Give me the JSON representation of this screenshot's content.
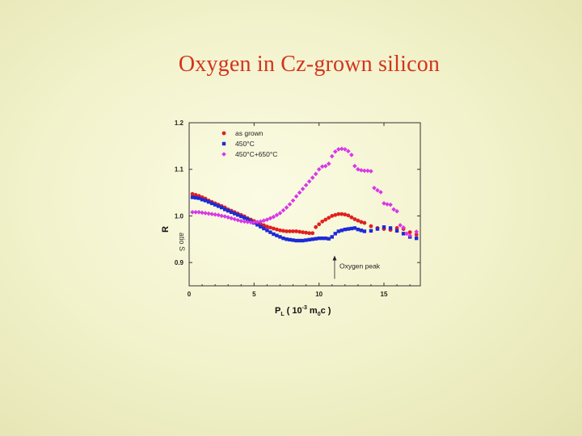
{
  "slide": {
    "title": "Oxygen in Cz-grown silicon"
  },
  "chart_data": {
    "type": "scatter",
    "title": "",
    "xlabel": {
      "main": "P",
      "sub": "L",
      "open": " ( 10",
      "exp": "-3",
      " mid": "",
      "unit_main": " m",
      "unit_sub": "0",
      "close": "c )"
    },
    "ylabel": "R",
    "ylabel_extra": "atio S",
    "xlim": [
      0,
      17.8
    ],
    "ylim": [
      0.85,
      1.2
    ],
    "x_ticks": [
      0,
      5,
      10,
      15
    ],
    "x_tick_labels": [
      "0",
      "5",
      "10",
      "15"
    ],
    "y_ticks": [
      0.9,
      1.0,
      1.1,
      1.2
    ],
    "y_tick_labels": [
      "0.9",
      "1.0",
      "1.1",
      "1.2"
    ],
    "legend_position": "top-left",
    "series": [
      {
        "name": "as grown",
        "color": "#e02020",
        "marker": "circle",
        "points": [
          [
            0.25,
            1.047
          ],
          [
            0.5,
            1.045
          ],
          [
            0.75,
            1.043
          ],
          [
            1.0,
            1.04
          ],
          [
            1.25,
            1.037
          ],
          [
            1.5,
            1.033
          ],
          [
            1.75,
            1.03
          ],
          [
            2.0,
            1.027
          ],
          [
            2.25,
            1.024
          ],
          [
            2.5,
            1.021
          ],
          [
            2.75,
            1.018
          ],
          [
            3.0,
            1.014
          ],
          [
            3.25,
            1.011
          ],
          [
            3.5,
            1.008
          ],
          [
            3.75,
            1.005
          ],
          [
            4.0,
            1.002
          ],
          [
            4.25,
            0.999
          ],
          [
            4.5,
            0.995
          ],
          [
            4.75,
            0.992
          ],
          [
            5.0,
            0.989
          ],
          [
            5.25,
            0.986
          ],
          [
            5.5,
            0.983
          ],
          [
            5.75,
            0.98
          ],
          [
            6.0,
            0.977
          ],
          [
            6.25,
            0.975
          ],
          [
            6.5,
            0.973
          ],
          [
            6.75,
            0.971
          ],
          [
            7.0,
            0.969
          ],
          [
            7.25,
            0.968
          ],
          [
            7.5,
            0.967
          ],
          [
            7.75,
            0.967
          ],
          [
            8.0,
            0.967
          ],
          [
            8.25,
            0.967
          ],
          [
            8.5,
            0.966
          ],
          [
            8.75,
            0.965
          ],
          [
            9.0,
            0.964
          ],
          [
            9.25,
            0.963
          ],
          [
            9.5,
            0.963
          ],
          [
            9.75,
            0.976
          ],
          [
            10.0,
            0.982
          ],
          [
            10.25,
            0.988
          ],
          [
            10.5,
            0.992
          ],
          [
            10.75,
            0.996
          ],
          [
            11.0,
            1.0
          ],
          [
            11.25,
            1.002
          ],
          [
            11.5,
            1.004
          ],
          [
            11.75,
            1.004
          ],
          [
            12.0,
            1.003
          ],
          [
            12.25,
            1.001
          ],
          [
            12.5,
            0.997
          ],
          [
            12.75,
            0.993
          ],
          [
            13.0,
            0.99
          ],
          [
            13.25,
            0.987
          ],
          [
            13.5,
            0.985
          ],
          [
            14.0,
            0.978
          ],
          [
            14.5,
            0.974
          ],
          [
            15.0,
            0.972
          ],
          [
            15.5,
            0.97
          ],
          [
            16.0,
            0.974
          ],
          [
            16.5,
            0.972
          ],
          [
            17.0,
            0.965
          ],
          [
            17.5,
            0.96
          ]
        ]
      },
      {
        "name": "450°C",
        "color": "#1c2ad8",
        "marker": "square",
        "points": [
          [
            0.25,
            1.04
          ],
          [
            0.5,
            1.039
          ],
          [
            0.75,
            1.038
          ],
          [
            1.0,
            1.035
          ],
          [
            1.25,
            1.033
          ],
          [
            1.5,
            1.03
          ],
          [
            1.75,
            1.027
          ],
          [
            2.0,
            1.024
          ],
          [
            2.25,
            1.021
          ],
          [
            2.5,
            1.018
          ],
          [
            2.75,
            1.014
          ],
          [
            3.0,
            1.011
          ],
          [
            3.25,
            1.008
          ],
          [
            3.5,
            1.005
          ],
          [
            3.75,
            1.002
          ],
          [
            4.0,
            0.999
          ],
          [
            4.25,
            0.996
          ],
          [
            4.5,
            0.993
          ],
          [
            4.75,
            0.989
          ],
          [
            5.0,
            0.985
          ],
          [
            5.25,
            0.981
          ],
          [
            5.5,
            0.977
          ],
          [
            5.75,
            0.973
          ],
          [
            6.0,
            0.969
          ],
          [
            6.25,
            0.965
          ],
          [
            6.5,
            0.961
          ],
          [
            6.75,
            0.958
          ],
          [
            7.0,
            0.955
          ],
          [
            7.25,
            0.952
          ],
          [
            7.5,
            0.95
          ],
          [
            7.75,
            0.949
          ],
          [
            8.0,
            0.948
          ],
          [
            8.25,
            0.947
          ],
          [
            8.5,
            0.947
          ],
          [
            8.75,
            0.947
          ],
          [
            9.0,
            0.948
          ],
          [
            9.25,
            0.949
          ],
          [
            9.5,
            0.95
          ],
          [
            9.75,
            0.951
          ],
          [
            10.0,
            0.952
          ],
          [
            10.25,
            0.952
          ],
          [
            10.5,
            0.952
          ],
          [
            10.75,
            0.951
          ],
          [
            11.0,
            0.955
          ],
          [
            11.25,
            0.962
          ],
          [
            11.5,
            0.967
          ],
          [
            11.75,
            0.969
          ],
          [
            12.0,
            0.971
          ],
          [
            12.25,
            0.972
          ],
          [
            12.5,
            0.973
          ],
          [
            12.75,
            0.974
          ],
          [
            13.0,
            0.971
          ],
          [
            13.25,
            0.969
          ],
          [
            13.5,
            0.967
          ],
          [
            14.0,
            0.968
          ],
          [
            14.5,
            0.972
          ],
          [
            15.0,
            0.976
          ],
          [
            15.5,
            0.974
          ],
          [
            16.0,
            0.968
          ],
          [
            16.5,
            0.962
          ],
          [
            17.0,
            0.955
          ],
          [
            17.5,
            0.952
          ]
        ]
      },
      {
        "name": "450°C+650°C",
        "color": "#d838e6",
        "marker": "diamond",
        "points": [
          [
            0.25,
            1.008
          ],
          [
            0.5,
            1.008
          ],
          [
            0.75,
            1.008
          ],
          [
            1.0,
            1.007
          ],
          [
            1.25,
            1.006
          ],
          [
            1.5,
            1.005
          ],
          [
            1.75,
            1.004
          ],
          [
            2.0,
            1.003
          ],
          [
            2.25,
            1.002
          ],
          [
            2.5,
            1.0
          ],
          [
            2.75,
            0.999
          ],
          [
            3.0,
            0.997
          ],
          [
            3.25,
            0.995
          ],
          [
            3.5,
            0.993
          ],
          [
            3.75,
            0.991
          ],
          [
            4.0,
            0.989
          ],
          [
            4.25,
            0.988
          ],
          [
            4.5,
            0.987
          ],
          [
            4.75,
            0.986
          ],
          [
            5.0,
            0.986
          ],
          [
            5.25,
            0.987
          ],
          [
            5.5,
            0.988
          ],
          [
            5.75,
            0.99
          ],
          [
            6.0,
            0.992
          ],
          [
            6.25,
            0.995
          ],
          [
            6.5,
            0.998
          ],
          [
            6.75,
            1.002
          ],
          [
            7.0,
            1.006
          ],
          [
            7.25,
            1.012
          ],
          [
            7.5,
            1.018
          ],
          [
            7.75,
            1.025
          ],
          [
            8.0,
            1.033
          ],
          [
            8.25,
            1.042
          ],
          [
            8.5,
            1.05
          ],
          [
            8.75,
            1.058
          ],
          [
            9.0,
            1.066
          ],
          [
            9.25,
            1.074
          ],
          [
            9.5,
            1.082
          ],
          [
            9.75,
            1.09
          ],
          [
            10.0,
            1.1
          ],
          [
            10.25,
            1.106
          ],
          [
            10.5,
            1.107
          ],
          [
            10.75,
            1.112
          ],
          [
            11.0,
            1.128
          ],
          [
            11.25,
            1.138
          ],
          [
            11.5,
            1.143
          ],
          [
            11.75,
            1.144
          ],
          [
            12.0,
            1.143
          ],
          [
            12.25,
            1.139
          ],
          [
            12.5,
            1.131
          ],
          [
            12.75,
            1.107
          ],
          [
            13.0,
            1.1
          ],
          [
            13.25,
            1.098
          ],
          [
            13.5,
            1.097
          ],
          [
            13.75,
            1.097
          ],
          [
            14.0,
            1.096
          ],
          [
            14.25,
            1.06
          ],
          [
            14.5,
            1.055
          ],
          [
            14.75,
            1.051
          ],
          [
            15.0,
            1.027
          ],
          [
            15.25,
            1.025
          ],
          [
            15.5,
            1.024
          ],
          [
            15.75,
            1.014
          ],
          [
            16.0,
            1.01
          ],
          [
            16.25,
            0.98
          ],
          [
            16.5,
            0.975
          ],
          [
            16.75,
            0.962
          ],
          [
            17.0,
            0.958
          ],
          [
            17.5,
            0.966
          ]
        ]
      }
    ],
    "annotations": [
      {
        "text": "Oxygen peak",
        "x": 11.2,
        "arrow_from_y": 0.865,
        "arrow_to_y": 0.915
      }
    ]
  }
}
